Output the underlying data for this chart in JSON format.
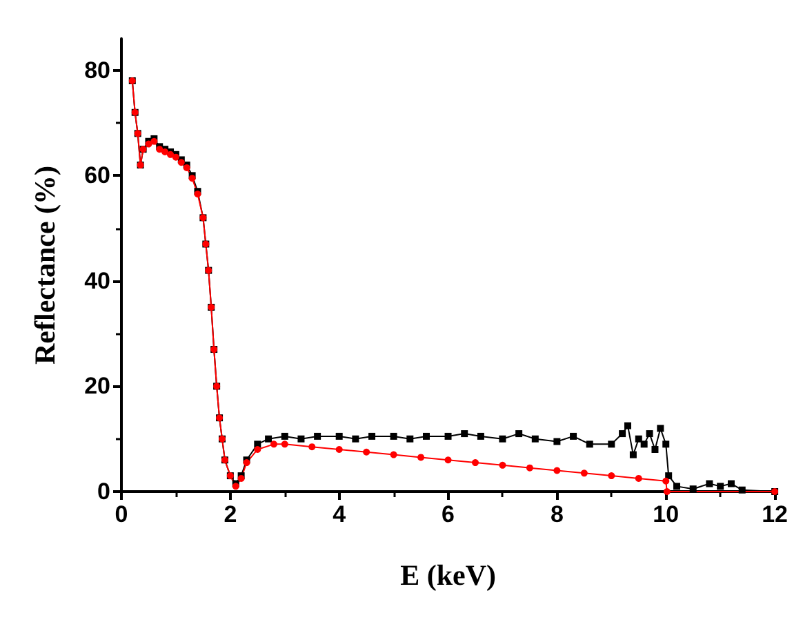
{
  "chart_data": {
    "type": "line",
    "xlabel": "E (keV)",
    "ylabel": "Reflectance (%)",
    "xlim": [
      0,
      12
    ],
    "xticks": [
      0,
      2,
      4,
      6,
      8,
      10,
      12
    ],
    "ylim": [
      0,
      86
    ],
    "yticks": [
      0,
      20,
      40,
      60,
      80
    ],
    "grid": false,
    "series": [
      {
        "color": "#000000",
        "marker": "square",
        "x": [
          0.2,
          0.25,
          0.3,
          0.35,
          0.4,
          0.5,
          0.6,
          0.7,
          0.8,
          0.9,
          1.0,
          1.1,
          1.2,
          1.3,
          1.4,
          1.5,
          1.55,
          1.6,
          1.65,
          1.7,
          1.75,
          1.8,
          1.85,
          1.9,
          2.0,
          2.1,
          2.2,
          2.3,
          2.5,
          2.7,
          3.0,
          3.3,
          3.6,
          4.0,
          4.3,
          4.6,
          5.0,
          5.3,
          5.6,
          6.0,
          6.3,
          6.6,
          7.0,
          7.3,
          7.6,
          8.0,
          8.3,
          8.6,
          9.0,
          9.2,
          9.3,
          9.4,
          9.5,
          9.6,
          9.7,
          9.8,
          9.9,
          10.0,
          10.05,
          10.2,
          10.5,
          10.8,
          11.0,
          11.2,
          11.4,
          12.0
        ],
        "values": [
          78,
          72,
          68,
          62,
          65,
          66.5,
          67,
          65.5,
          65,
          64.5,
          64,
          63,
          62,
          60,
          57,
          52,
          47,
          42,
          35,
          27,
          20,
          14,
          10,
          6,
          3,
          1.5,
          3,
          6,
          9,
          10,
          10.5,
          10,
          10.5,
          10.5,
          10,
          10.5,
          10.5,
          10,
          10.5,
          10.5,
          11,
          10.5,
          10,
          11,
          10,
          9.5,
          10.5,
          9,
          9,
          11,
          12.5,
          7,
          10,
          9,
          11,
          8,
          12,
          9,
          3,
          1,
          0.5,
          1.5,
          1,
          1.5,
          0.3,
          0
        ]
      },
      {
        "color": "#ff0000",
        "marker": "circle",
        "x": [
          0.2,
          0.25,
          0.3,
          0.35,
          0.4,
          0.5,
          0.6,
          0.7,
          0.8,
          0.9,
          1.0,
          1.1,
          1.2,
          1.3,
          1.4,
          1.5,
          1.55,
          1.6,
          1.65,
          1.7,
          1.75,
          1.8,
          1.85,
          1.9,
          2.0,
          2.1,
          2.2,
          2.3,
          2.5,
          2.8,
          3.0,
          3.5,
          4.0,
          4.5,
          5.0,
          5.5,
          6.0,
          6.5,
          7.0,
          7.5,
          8.0,
          8.5,
          9.0,
          9.5,
          10.0,
          10.02,
          12.0
        ],
        "values": [
          78,
          72,
          68,
          62,
          65,
          66,
          66.5,
          65,
          64.5,
          64,
          63.5,
          62.5,
          61.5,
          59.5,
          56.5,
          52,
          47,
          42,
          35,
          27,
          20,
          14,
          10,
          6,
          3,
          1,
          2.5,
          5.5,
          8,
          9,
          9,
          8.5,
          8,
          7.5,
          7,
          6.5,
          6,
          5.5,
          5,
          4.5,
          4,
          3.5,
          3,
          2.5,
          2,
          0,
          0
        ]
      }
    ]
  }
}
